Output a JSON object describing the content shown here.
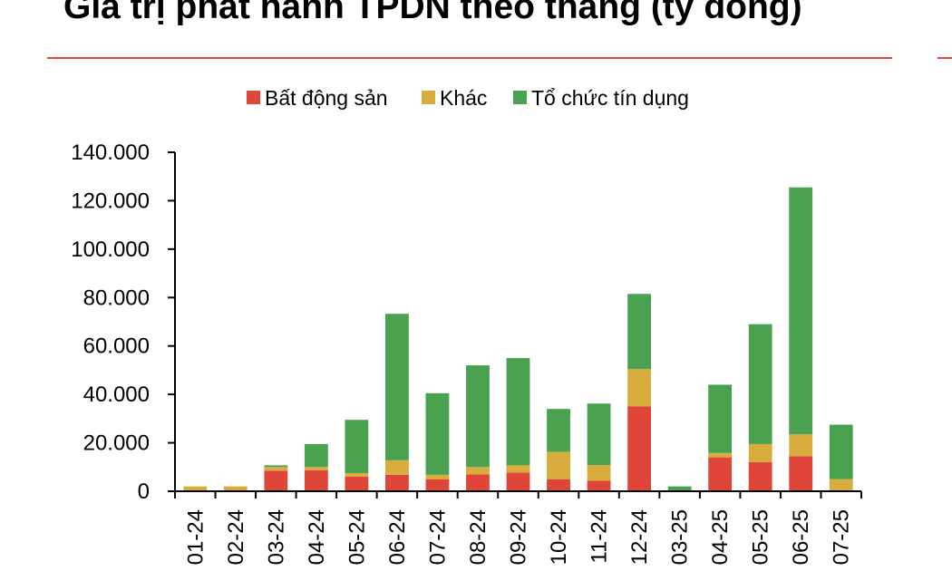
{
  "title": "Giá trị phát hành TPDN theo tháng (tỷ đồng)",
  "colors": {
    "accent_rule": "#e0453a",
    "bat_dong_san": "#e0453a",
    "khac": "#d9ac3e",
    "to_chuc_tin_dung": "#4aa251"
  },
  "chart_data": {
    "type": "bar",
    "stacked": true,
    "categories": [
      "01-24",
      "02-24",
      "03-24",
      "04-24",
      "05-24",
      "06-24",
      "07-24",
      "08-24",
      "09-24",
      "10-24",
      "11-24",
      "12-24",
      "03-25",
      "04-25",
      "05-25",
      "06-25",
      "07-25"
    ],
    "series": [
      {
        "name": "Bất động sản",
        "color": "#e0453a",
        "values": [
          0,
          0,
          8500,
          8700,
          6000,
          6800,
          5000,
          7000,
          7700,
          5000,
          4300,
          35000,
          0,
          14000,
          12000,
          14500,
          0
        ]
      },
      {
        "name": "Khác",
        "color": "#d9ac3e",
        "values": [
          2000,
          2000,
          1500,
          1300,
          1500,
          6000,
          1800,
          3000,
          3000,
          11300,
          6500,
          15500,
          0,
          1800,
          7500,
          9000,
          5000
        ]
      },
      {
        "name": "Tổ chức tín dụng",
        "color": "#4aa251",
        "values": [
          0,
          0,
          700,
          9500,
          22000,
          60500,
          33700,
          42000,
          44300,
          17700,
          25400,
          31000,
          2000,
          28200,
          49500,
          102000,
          22500
        ]
      }
    ],
    "yticks": [
      "0",
      "20.000",
      "40.000",
      "60.000",
      "80.000",
      "100.000",
      "120.000",
      "140.000"
    ],
    "ylim": [
      0,
      140000
    ],
    "grid": false,
    "legend_position": "top-center",
    "xlabel": "",
    "ylabel": ""
  }
}
